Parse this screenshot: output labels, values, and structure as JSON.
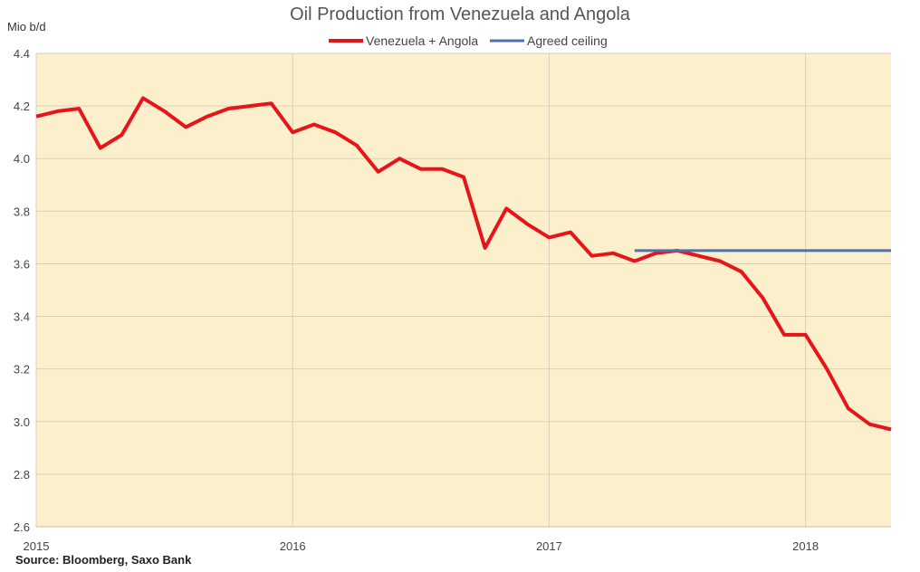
{
  "chart_data": {
    "type": "line",
    "title": "Oil Production from Venezuela and Angola",
    "ylabel": "Mio b/d",
    "source": "Source: Bloomberg, Saxo Bank",
    "ylim": [
      2.6,
      4.4
    ],
    "yticks": [
      "2.6",
      "2.8",
      "3.0",
      "3.2",
      "3.4",
      "3.6",
      "3.8",
      "4.0",
      "4.2",
      "4.4"
    ],
    "xlim": [
      "2015-01",
      "2018-05"
    ],
    "xticks": [
      "2015",
      "2016",
      "2017",
      "2018"
    ],
    "grid": true,
    "legend_position": "top-center",
    "colors": {
      "background": "#fcefcc",
      "grid": "#d7d0bf",
      "venezuela_angola": "#e8141b",
      "ceiling": "#4a72b8"
    },
    "series": [
      {
        "name": "Venezuela + Angola",
        "x": [
          "2015-01",
          "2015-02",
          "2015-03",
          "2015-04",
          "2015-05",
          "2015-06",
          "2015-07",
          "2015-08",
          "2015-09",
          "2015-10",
          "2015-11",
          "2015-12",
          "2016-01",
          "2016-02",
          "2016-03",
          "2016-04",
          "2016-05",
          "2016-06",
          "2016-07",
          "2016-08",
          "2016-09",
          "2016-10",
          "2016-11",
          "2016-12",
          "2017-01",
          "2017-02",
          "2017-03",
          "2017-04",
          "2017-05",
          "2017-06",
          "2017-07",
          "2017-08",
          "2017-09",
          "2017-10",
          "2017-11",
          "2017-12",
          "2018-01",
          "2018-02",
          "2018-03",
          "2018-04",
          "2018-05"
        ],
        "values": [
          4.16,
          4.18,
          4.19,
          4.04,
          4.09,
          4.23,
          4.18,
          4.12,
          4.16,
          4.19,
          4.2,
          4.21,
          4.1,
          4.13,
          4.1,
          4.05,
          3.95,
          4.0,
          3.96,
          3.96,
          3.93,
          3.66,
          3.81,
          3.75,
          3.7,
          3.72,
          3.63,
          3.64,
          3.61,
          3.64,
          3.65,
          3.63,
          3.61,
          3.57,
          3.47,
          3.33,
          3.33,
          3.2,
          3.05,
          2.99,
          2.97
        ]
      },
      {
        "name": "Agreed ceiling",
        "x": [
          "2017-05",
          "2018-05"
        ],
        "values": [
          3.65,
          3.65
        ]
      }
    ]
  }
}
